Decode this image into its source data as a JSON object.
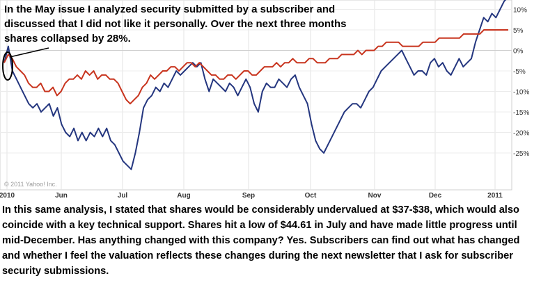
{
  "headline": "In the May issue I analyzed security submitted by a subscriber and discussed that I did not like it personally. Over the next three months shares collapsed by 28%.",
  "body_text": "In this same analysis, I stated that shares would be considerably undervalued at $37-$38, which would also coincide with a key technical support. Shares hit a low of $44.61 in July and have made little progress until mid-December. Has anything changed with this company?  Yes.  Subscribers can find out what has changed and whether I feel the valuation reflects these changes during the next newsletter that I ask for subscriber security submissions.",
  "copyright": "© 2011 Yahoo! Inc.",
  "chart_data": {
    "type": "line",
    "title": "",
    "xlabel": "",
    "ylabel": "",
    "x_ticks": [
      "2010",
      "Jun",
      "Jul",
      "Aug",
      "Sep",
      "Oct",
      "Nov",
      "Dec",
      "2011"
    ],
    "y_ticks": [
      "10%",
      "5%",
      "0%",
      "-5%",
      "-10%",
      "-15%",
      "-20%",
      "-25%"
    ],
    "ylim": [
      -30,
      14
    ],
    "grid": true,
    "series": [
      {
        "color": "#24367f",
        "values": [
          -3,
          1,
          -5,
          -7,
          -9,
          -11,
          -13,
          -14,
          -13,
          -15,
          -14,
          -13,
          -16,
          -14,
          -18,
          -20,
          -21,
          -19,
          -22,
          -20,
          -22,
          -20,
          -21,
          -19,
          -21,
          -19,
          -22,
          -23,
          -25,
          -27,
          -28,
          -29,
          -25,
          -20,
          -14,
          -12,
          -11,
          -9,
          -10,
          -8,
          -9,
          -7,
          -5,
          -6,
          -5,
          -4,
          -3,
          -4,
          -3,
          -7,
          -10,
          -7,
          -8,
          -9,
          -10,
          -8,
          -9,
          -11,
          -9,
          -7,
          -9,
          -13,
          -15,
          -10,
          -8,
          -9,
          -9,
          -7,
          -8,
          -9,
          -7,
          -6,
          -9,
          -11,
          -13,
          -18,
          -22,
          -24,
          -25,
          -23,
          -21,
          -19,
          -17,
          -15,
          -14,
          -13,
          -13,
          -14,
          -12,
          -10,
          -9,
          -7,
          -5,
          -4,
          -3,
          -2,
          -1,
          0,
          -2,
          -4,
          -6,
          -5,
          -5,
          -6,
          -3,
          -2,
          -4,
          -3,
          -5,
          -6,
          -4,
          -2,
          -4,
          -3,
          -2,
          2,
          5,
          8,
          7,
          9,
          8,
          10,
          12,
          13
        ]
      },
      {
        "color": "#c8341e",
        "values": [
          -3,
          -1,
          -2,
          -4,
          -5,
          -6,
          -8,
          -9,
          -9,
          -8,
          -10,
          -10,
          -9,
          -11,
          -10,
          -8,
          -7,
          -7,
          -6,
          -7,
          -5,
          -6,
          -5,
          -7,
          -6,
          -6,
          -7,
          -7,
          -8,
          -10,
          -12,
          -13,
          -12,
          -11,
          -9,
          -8,
          -6,
          -7,
          -6,
          -5,
          -5,
          -4,
          -4,
          -5,
          -4,
          -3,
          -3,
          -4,
          -3,
          -4,
          -5,
          -6,
          -6,
          -7,
          -7,
          -6,
          -6,
          -7,
          -6,
          -5,
          -5,
          -6,
          -6,
          -5,
          -4,
          -4,
          -4,
          -3,
          -4,
          -3,
          -3,
          -2,
          -3,
          -3,
          -3,
          -2,
          -2,
          -3,
          -3,
          -3,
          -2,
          -2,
          -2,
          -1,
          -1,
          -1,
          -1,
          0,
          -1,
          0,
          0,
          0,
          1,
          1,
          2,
          2,
          2,
          2,
          1,
          1,
          1,
          1,
          1,
          2,
          2,
          2,
          2,
          3,
          3,
          3,
          3,
          3,
          3,
          4,
          4,
          4,
          4,
          4,
          5,
          5,
          5,
          5,
          5,
          5,
          5
        ]
      }
    ]
  }
}
